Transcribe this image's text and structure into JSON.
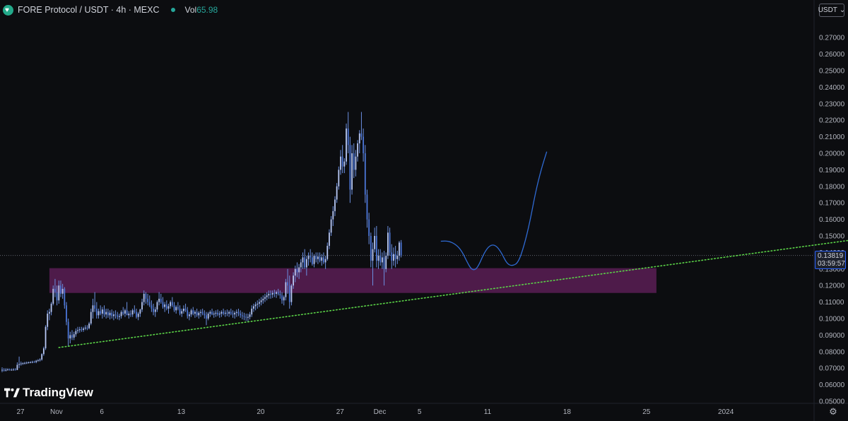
{
  "header": {
    "symbol_title": "FORE Protocol / USDT · 4h · MEXC",
    "volume_label": "Vol",
    "volume_value": "65.98"
  },
  "toolbar": {
    "currency_label": "USDT",
    "currency_caret": "⌄"
  },
  "price_tag": {
    "price": "0.13819",
    "countdown": "03:59:57"
  },
  "watermark": {
    "text": "TradingView"
  },
  "icons": {
    "settings": "gear-icon"
  },
  "chart_data": {
    "type": "candlestick",
    "title": "",
    "y_axis": {
      "ylim": [
        0.045,
        0.275
      ],
      "ticks": [
        "0.27000",
        "0.26000",
        "0.25000",
        "0.24000",
        "0.23000",
        "0.22000",
        "0.21000",
        "0.20000",
        "0.19000",
        "0.18000",
        "0.17000",
        "0.16000",
        "0.15000",
        "0.14000",
        "0.13000",
        "0.12000",
        "0.11000",
        "0.10000",
        "0.09000",
        "0.08000",
        "0.07000",
        "0.06000",
        "0.05000"
      ]
    },
    "x_axis": {
      "ticks": [
        {
          "label": "27",
          "idx": 3
        },
        {
          "label": "Nov",
          "idx": 22
        },
        {
          "label": "6",
          "idx": 46
        },
        {
          "label": "13",
          "idx": 88
        },
        {
          "label": "20",
          "idx": 130
        },
        {
          "label": "27",
          "idx": 172
        },
        {
          "label": "Dec",
          "idx": 193
        },
        {
          "label": "5",
          "idx": 214
        },
        {
          "label": "11",
          "idx": 250
        },
        {
          "label": "18",
          "idx": 292
        },
        {
          "label": "25",
          "idx": 334
        },
        {
          "label": "2024",
          "idx": 376
        }
      ],
      "last_idx": 449
    },
    "current_price": 0.13819,
    "zone": {
      "from_idx": 25,
      "to_idx": 346,
      "low": 0.1155,
      "high": 0.1305,
      "color": "#5b1f55"
    },
    "trendline": {
      "p1": {
        "idx": 30,
        "price": 0.0825
      },
      "p2": {
        "idx": 449,
        "price": 0.1475
      },
      "color": "#5bd447"
    },
    "projection": {
      "color": "#2f6ad3",
      "points": [
        [
          232,
          0.1468
        ],
        [
          236,
          0.147
        ],
        [
          240,
          0.1448
        ],
        [
          243,
          0.141
        ],
        [
          246,
          0.134
        ],
        [
          248,
          0.13
        ],
        [
          250,
          0.1293
        ],
        [
          252,
          0.132
        ],
        [
          255,
          0.14
        ],
        [
          258,
          0.1445
        ],
        [
          261,
          0.1445
        ],
        [
          264,
          0.14
        ],
        [
          267,
          0.133
        ],
        [
          270,
          0.1318
        ],
        [
          273,
          0.134
        ],
        [
          276,
          0.144
        ],
        [
          279,
          0.158
        ],
        [
          282,
          0.176
        ],
        [
          285,
          0.19
        ],
        [
          288,
          0.201
        ]
      ]
    },
    "candle_color": "#6b8fe0",
    "candles": [
      [
        0.069,
        0.0705,
        0.0675,
        0.069
      ],
      [
        0.069,
        0.07,
        0.068,
        0.0685
      ],
      [
        0.0685,
        0.07,
        0.068,
        0.069
      ],
      [
        0.069,
        0.07,
        0.0685,
        0.0692
      ],
      [
        0.0692,
        0.0698,
        0.0685,
        0.0688
      ],
      [
        0.0688,
        0.0698,
        0.0685,
        0.069
      ],
      [
        0.069,
        0.07,
        0.0686,
        0.0691
      ],
      [
        0.0691,
        0.07,
        0.0686,
        0.0689
      ],
      [
        0.0689,
        0.0735,
        0.0688,
        0.072
      ],
      [
        0.072,
        0.077,
        0.07,
        0.0725
      ],
      [
        0.0725,
        0.074,
        0.0715,
        0.0728
      ],
      [
        0.0728,
        0.0735,
        0.072,
        0.073
      ],
      [
        0.073,
        0.0738,
        0.0722,
        0.0732
      ],
      [
        0.0732,
        0.074,
        0.0725,
        0.0733
      ],
      [
        0.0733,
        0.074,
        0.0728,
        0.0735
      ],
      [
        0.0735,
        0.0742,
        0.073,
        0.0736
      ],
      [
        0.0736,
        0.0745,
        0.073,
        0.0738
      ],
      [
        0.0738,
        0.0745,
        0.0732,
        0.0737
      ],
      [
        0.0737,
        0.075,
        0.073,
        0.0745
      ],
      [
        0.0745,
        0.0755,
        0.0738,
        0.0748
      ],
      [
        0.0748,
        0.076,
        0.074,
        0.0752
      ],
      [
        0.0752,
        0.079,
        0.0745,
        0.0785
      ],
      [
        0.0785,
        0.083,
        0.0775,
        0.082
      ],
      [
        0.082,
        0.096,
        0.081,
        0.095
      ],
      [
        0.095,
        0.105,
        0.093,
        0.103
      ],
      [
        0.103,
        0.106,
        0.099,
        0.104
      ],
      [
        0.104,
        0.11,
        0.102,
        0.109
      ],
      [
        0.109,
        0.12,
        0.108,
        0.118
      ],
      [
        0.118,
        0.124,
        0.113,
        0.116
      ],
      [
        0.116,
        0.12,
        0.108,
        0.111
      ],
      [
        0.111,
        0.123,
        0.109,
        0.12
      ],
      [
        0.12,
        0.123,
        0.113,
        0.115
      ],
      [
        0.115,
        0.121,
        0.112,
        0.118
      ],
      [
        0.118,
        0.119,
        0.106,
        0.108
      ],
      [
        0.108,
        0.11,
        0.096,
        0.098
      ],
      [
        0.098,
        0.1,
        0.083,
        0.088
      ],
      [
        0.088,
        0.092,
        0.085,
        0.09
      ],
      [
        0.09,
        0.093,
        0.087,
        0.0885
      ],
      [
        0.0885,
        0.092,
        0.087,
        0.0905
      ],
      [
        0.0905,
        0.094,
        0.089,
        0.0925
      ],
      [
        0.0925,
        0.095,
        0.091,
        0.093
      ],
      [
        0.093,
        0.095,
        0.0915,
        0.0935
      ],
      [
        0.0935,
        0.095,
        0.092,
        0.0932
      ],
      [
        0.0932,
        0.095,
        0.092,
        0.094
      ],
      [
        0.094,
        0.096,
        0.093,
        0.0945
      ],
      [
        0.0945,
        0.096,
        0.093,
        0.0942
      ],
      [
        0.0942,
        0.098,
        0.0935,
        0.097
      ],
      [
        0.097,
        0.106,
        0.096,
        0.104
      ],
      [
        0.104,
        0.112,
        0.1,
        0.108
      ],
      [
        0.108,
        0.116,
        0.104,
        0.106
      ],
      [
        0.106,
        0.11,
        0.1,
        0.102
      ],
      [
        0.102,
        0.106,
        0.1,
        0.1045
      ],
      [
        0.1045,
        0.108,
        0.102,
        0.103
      ],
      [
        0.103,
        0.107,
        0.1,
        0.1055
      ],
      [
        0.1055,
        0.108,
        0.101,
        0.1025
      ],
      [
        0.1025,
        0.106,
        0.1,
        0.104
      ],
      [
        0.104,
        0.106,
        0.1005,
        0.102
      ],
      [
        0.102,
        0.105,
        0.0995,
        0.1035
      ],
      [
        0.1035,
        0.1055,
        0.1,
        0.1015
      ],
      [
        0.1015,
        0.1045,
        0.099,
        0.1025
      ],
      [
        0.1025,
        0.105,
        0.1,
        0.102
      ],
      [
        0.102,
        0.104,
        0.0995,
        0.101
      ],
      [
        0.101,
        0.103,
        0.099,
        0.1015
      ],
      [
        0.1015,
        0.105,
        0.1,
        0.104
      ],
      [
        0.104,
        0.107,
        0.102,
        0.103
      ],
      [
        0.103,
        0.106,
        0.101,
        0.105
      ],
      [
        0.105,
        0.11,
        0.103,
        0.102
      ],
      [
        0.102,
        0.1045,
        0.1,
        0.103
      ],
      [
        0.103,
        0.105,
        0.101,
        0.1025
      ],
      [
        0.1025,
        0.106,
        0.101,
        0.105
      ],
      [
        0.105,
        0.108,
        0.103,
        0.104
      ],
      [
        0.104,
        0.106,
        0.1,
        0.101
      ],
      [
        0.101,
        0.104,
        0.099,
        0.103
      ],
      [
        0.103,
        0.106,
        0.101,
        0.1055
      ],
      [
        0.1055,
        0.112,
        0.104,
        0.11
      ],
      [
        0.11,
        0.117,
        0.108,
        0.115
      ],
      [
        0.115,
        0.116,
        0.109,
        0.112
      ],
      [
        0.112,
        0.115,
        0.108,
        0.11
      ],
      [
        0.11,
        0.114,
        0.107,
        0.108
      ],
      [
        0.108,
        0.111,
        0.104,
        0.106
      ],
      [
        0.106,
        0.109,
        0.102,
        0.104
      ],
      [
        0.104,
        0.107,
        0.101,
        0.1055
      ],
      [
        0.1055,
        0.111,
        0.104,
        0.11
      ],
      [
        0.11,
        0.116,
        0.108,
        0.112
      ],
      [
        0.112,
        0.115,
        0.109,
        0.11
      ],
      [
        0.11,
        0.113,
        0.106,
        0.107
      ],
      [
        0.107,
        0.11,
        0.104,
        0.1085
      ],
      [
        0.1085,
        0.111,
        0.105,
        0.106
      ],
      [
        0.106,
        0.109,
        0.103,
        0.1075
      ],
      [
        0.1075,
        0.111,
        0.106,
        0.11
      ],
      [
        0.11,
        0.113,
        0.107,
        0.108
      ],
      [
        0.108,
        0.11,
        0.104,
        0.105
      ],
      [
        0.105,
        0.108,
        0.103,
        0.107
      ],
      [
        0.107,
        0.11,
        0.105,
        0.106
      ],
      [
        0.106,
        0.108,
        0.102,
        0.103
      ],
      [
        0.103,
        0.106,
        0.101,
        0.1045
      ],
      [
        0.1045,
        0.108,
        0.103,
        0.106
      ],
      [
        0.106,
        0.109,
        0.104,
        0.105
      ],
      [
        0.105,
        0.107,
        0.1,
        0.1015
      ],
      [
        0.1015,
        0.104,
        0.099,
        0.1025
      ],
      [
        0.1025,
        0.106,
        0.101,
        0.105
      ],
      [
        0.105,
        0.107,
        0.102,
        0.103
      ],
      [
        0.103,
        0.105,
        0.1005,
        0.104
      ],
      [
        0.104,
        0.106,
        0.101,
        0.102
      ],
      [
        0.102,
        0.1045,
        0.1,
        0.1035
      ],
      [
        0.1035,
        0.1055,
        0.101,
        0.104
      ],
      [
        0.104,
        0.106,
        0.102,
        0.103
      ],
      [
        0.103,
        0.105,
        0.1,
        0.102
      ],
      [
        0.102,
        0.104,
        0.096,
        0.1
      ],
      [
        0.1,
        0.104,
        0.099,
        0.103
      ],
      [
        0.103,
        0.105,
        0.101,
        0.104
      ],
      [
        0.104,
        0.106,
        0.102,
        0.1025
      ],
      [
        0.1025,
        0.1045,
        0.1005,
        0.103
      ],
      [
        0.103,
        0.105,
        0.101,
        0.1035
      ],
      [
        0.1035,
        0.1055,
        0.1015,
        0.1025
      ],
      [
        0.1025,
        0.1045,
        0.1005,
        0.103
      ],
      [
        0.103,
        0.105,
        0.101,
        0.104
      ],
      [
        0.104,
        0.106,
        0.102,
        0.103
      ],
      [
        0.103,
        0.105,
        0.101,
        0.1035
      ],
      [
        0.1035,
        0.1055,
        0.1015,
        0.103
      ],
      [
        0.103,
        0.105,
        0.101,
        0.104
      ],
      [
        0.104,
        0.106,
        0.102,
        0.103
      ],
      [
        0.103,
        0.105,
        0.1005,
        0.1025
      ],
      [
        0.1025,
        0.1045,
        0.1,
        0.1035
      ],
      [
        0.1035,
        0.1055,
        0.101,
        0.104
      ],
      [
        0.104,
        0.106,
        0.1015,
        0.103
      ],
      [
        0.103,
        0.105,
        0.1005,
        0.102
      ],
      [
        0.102,
        0.104,
        0.0995,
        0.1015
      ],
      [
        0.1015,
        0.1035,
        0.099,
        0.101
      ],
      [
        0.101,
        0.103,
        0.0985,
        0.1005
      ],
      [
        0.1005,
        0.103,
        0.098,
        0.101
      ],
      [
        0.101,
        0.104,
        0.0995,
        0.1025
      ],
      [
        0.1025,
        0.108,
        0.101,
        0.106
      ],
      [
        0.106,
        0.109,
        0.104,
        0.1075
      ],
      [
        0.1075,
        0.11,
        0.105,
        0.1085
      ],
      [
        0.1085,
        0.111,
        0.106,
        0.109
      ],
      [
        0.109,
        0.112,
        0.107,
        0.11
      ],
      [
        0.11,
        0.113,
        0.108,
        0.111
      ],
      [
        0.111,
        0.114,
        0.109,
        0.112
      ],
      [
        0.112,
        0.115,
        0.11,
        0.113
      ],
      [
        0.113,
        0.116,
        0.111,
        0.114
      ],
      [
        0.114,
        0.117,
        0.112,
        0.115
      ],
      [
        0.115,
        0.117,
        0.112,
        0.1145
      ],
      [
        0.1145,
        0.117,
        0.1125,
        0.1155
      ],
      [
        0.1155,
        0.1175,
        0.113,
        0.115
      ],
      [
        0.115,
        0.117,
        0.1125,
        0.116
      ],
      [
        0.116,
        0.118,
        0.114,
        0.115
      ],
      [
        0.115,
        0.117,
        0.112,
        0.114
      ],
      [
        0.114,
        0.116,
        0.109,
        0.111
      ],
      [
        0.111,
        0.114,
        0.108,
        0.113
      ],
      [
        0.113,
        0.124,
        0.111,
        0.122
      ],
      [
        0.122,
        0.13,
        0.115,
        0.12
      ],
      [
        0.12,
        0.126,
        0.106,
        0.11
      ],
      [
        0.11,
        0.121,
        0.108,
        0.12
      ],
      [
        0.12,
        0.128,
        0.118,
        0.126
      ],
      [
        0.126,
        0.132,
        0.122,
        0.13
      ],
      [
        0.13,
        0.134,
        0.125,
        0.128
      ],
      [
        0.128,
        0.133,
        0.124,
        0.131
      ],
      [
        0.131,
        0.136,
        0.128,
        0.134
      ],
      [
        0.134,
        0.14,
        0.13,
        0.137
      ],
      [
        0.137,
        0.142,
        0.13,
        0.131
      ],
      [
        0.131,
        0.138,
        0.126,
        0.136
      ],
      [
        0.136,
        0.14,
        0.132,
        0.138
      ],
      [
        0.138,
        0.142,
        0.134,
        0.137
      ],
      [
        0.137,
        0.14,
        0.132,
        0.133
      ],
      [
        0.133,
        0.139,
        0.131,
        0.138
      ],
      [
        0.138,
        0.14,
        0.134,
        0.136
      ],
      [
        0.136,
        0.14,
        0.133,
        0.1375
      ],
      [
        0.1375,
        0.14,
        0.134,
        0.135
      ],
      [
        0.135,
        0.139,
        0.132,
        0.137
      ],
      [
        0.137,
        0.14,
        0.133,
        0.134
      ],
      [
        0.134,
        0.138,
        0.13,
        0.136
      ],
      [
        0.136,
        0.146,
        0.135,
        0.144
      ],
      [
        0.144,
        0.154,
        0.142,
        0.152
      ],
      [
        0.152,
        0.162,
        0.15,
        0.16
      ],
      [
        0.16,
        0.168,
        0.156,
        0.165
      ],
      [
        0.165,
        0.174,
        0.162,
        0.172
      ],
      [
        0.172,
        0.182,
        0.17,
        0.18
      ],
      [
        0.18,
        0.192,
        0.178,
        0.19
      ],
      [
        0.19,
        0.202,
        0.187,
        0.198
      ],
      [
        0.198,
        0.205,
        0.188,
        0.192
      ],
      [
        0.192,
        0.197,
        0.188,
        0.195
      ],
      [
        0.195,
        0.218,
        0.193,
        0.215
      ],
      [
        0.215,
        0.225,
        0.2,
        0.205
      ],
      [
        0.205,
        0.21,
        0.17,
        0.178
      ],
      [
        0.178,
        0.205,
        0.175,
        0.2
      ],
      [
        0.2,
        0.206,
        0.185,
        0.19
      ],
      [
        0.19,
        0.202,
        0.186,
        0.198
      ],
      [
        0.198,
        0.208,
        0.195,
        0.206
      ],
      [
        0.206,
        0.214,
        0.2,
        0.212
      ],
      [
        0.212,
        0.225,
        0.208,
        0.21
      ],
      [
        0.21,
        0.215,
        0.195,
        0.2
      ],
      [
        0.2,
        0.205,
        0.17,
        0.175
      ],
      [
        0.175,
        0.178,
        0.155,
        0.16
      ],
      [
        0.16,
        0.164,
        0.145,
        0.15
      ],
      [
        0.15,
        0.152,
        0.131,
        0.135
      ],
      [
        0.135,
        0.146,
        0.12,
        0.142
      ],
      [
        0.142,
        0.155,
        0.14,
        0.15
      ],
      [
        0.15,
        0.156,
        0.131,
        0.135
      ],
      [
        0.135,
        0.142,
        0.13,
        0.138
      ],
      [
        0.138,
        0.142,
        0.132,
        0.134
      ],
      [
        0.134,
        0.14,
        0.13,
        0.137
      ],
      [
        0.137,
        0.141,
        0.12,
        0.13
      ],
      [
        0.13,
        0.14,
        0.128,
        0.138
      ],
      [
        0.138,
        0.156,
        0.136,
        0.152
      ],
      [
        0.152,
        0.155,
        0.138,
        0.14
      ],
      [
        0.14,
        0.145,
        0.13,
        0.135
      ],
      [
        0.135,
        0.143,
        0.132,
        0.139
      ],
      [
        0.139,
        0.144,
        0.131,
        0.136
      ],
      [
        0.136,
        0.141,
        0.133,
        0.138
      ],
      [
        0.138,
        0.147,
        0.135,
        0.146
      ],
      [
        0.146,
        0.1475,
        0.137,
        0.1382
      ]
    ]
  }
}
